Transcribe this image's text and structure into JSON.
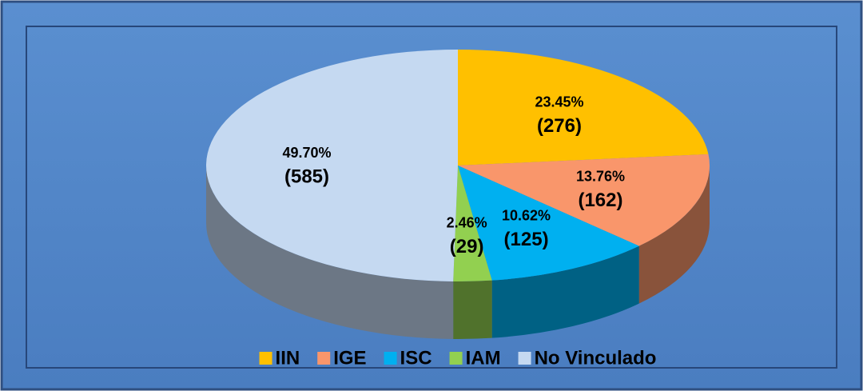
{
  "chart_data": {
    "type": "pie",
    "categories": [
      "IIN",
      "IGE",
      "ISC",
      "IAM",
      "No Vinculado"
    ],
    "values": [
      23.45,
      13.76,
      10.62,
      2.46,
      49.7
    ],
    "value_labels": [
      "23.45%",
      "13.76%",
      "10.62%",
      "2.46%",
      "49.70%"
    ],
    "counts": [
      276,
      162,
      125,
      29,
      585
    ],
    "count_labels": [
      "(276)",
      "(162)",
      "(125)",
      "(29)",
      "(585)"
    ],
    "colors": [
      "#ffc000",
      "#f9966b",
      "#00b0f0",
      "#92d050",
      "#c5d9f1"
    ],
    "legend": "bottom"
  }
}
